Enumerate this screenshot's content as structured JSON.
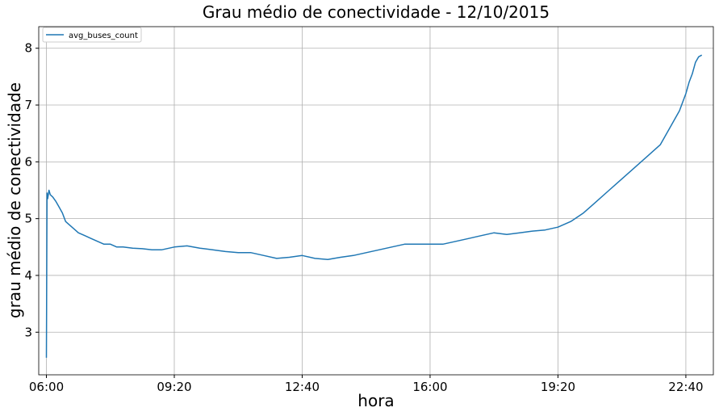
{
  "chart_data": {
    "type": "line",
    "title": "Grau médio de conectividade - 12/10/2015",
    "xlabel": "hora",
    "ylabel": "grau médio de conectividade",
    "x_unit": "time of day",
    "xlim": [
      "05:48",
      "23:23"
    ],
    "ylim": [
      2.25,
      8.38
    ],
    "x_ticks": [
      "06:00",
      "09:20",
      "12:40",
      "16:00",
      "19:20",
      "22:40"
    ],
    "y_ticks": [
      3,
      4,
      5,
      6,
      7,
      8
    ],
    "grid": true,
    "legend_position": "top-left",
    "series": [
      {
        "name": "avg_buses_count",
        "color": "#1f77b4",
        "x": [
          "06:00",
          "06:01",
          "06:02",
          "06:04",
          "06:06",
          "06:10",
          "06:15",
          "06:20",
          "06:25",
          "06:30",
          "06:35",
          "06:40",
          "06:45",
          "06:50",
          "07:00",
          "07:10",
          "07:20",
          "07:30",
          "07:40",
          "07:50",
          "08:00",
          "08:15",
          "08:30",
          "08:45",
          "09:00",
          "09:20",
          "09:40",
          "10:00",
          "10:20",
          "10:40",
          "11:00",
          "11:20",
          "11:40",
          "12:00",
          "12:20",
          "12:40",
          "13:00",
          "13:20",
          "13:40",
          "14:00",
          "14:20",
          "14:40",
          "15:00",
          "15:20",
          "15:40",
          "16:00",
          "16:20",
          "16:40",
          "17:00",
          "17:20",
          "17:40",
          "18:00",
          "18:20",
          "18:40",
          "19:00",
          "19:20",
          "19:40",
          "20:00",
          "20:20",
          "20:40",
          "21:00",
          "21:20",
          "21:40",
          "22:00",
          "22:15",
          "22:30",
          "22:40",
          "22:45",
          "22:50",
          "22:55",
          "23:00",
          "23:05"
        ],
        "values": [
          2.55,
          5.45,
          5.35,
          5.5,
          5.42,
          5.38,
          5.3,
          5.2,
          5.1,
          4.95,
          4.9,
          4.85,
          4.8,
          4.75,
          4.7,
          4.65,
          4.6,
          4.55,
          4.55,
          4.5,
          4.5,
          4.48,
          4.47,
          4.45,
          4.45,
          4.5,
          4.52,
          4.48,
          4.45,
          4.42,
          4.4,
          4.4,
          4.35,
          4.3,
          4.32,
          4.35,
          4.3,
          4.28,
          4.32,
          4.35,
          4.4,
          4.45,
          4.5,
          4.55,
          4.55,
          4.55,
          4.55,
          4.6,
          4.65,
          4.7,
          4.75,
          4.72,
          4.75,
          4.78,
          4.8,
          4.85,
          4.95,
          5.1,
          5.3,
          5.5,
          5.7,
          5.9,
          6.1,
          6.3,
          6.6,
          6.9,
          7.2,
          7.4,
          7.55,
          7.75,
          7.85,
          7.88
        ]
      }
    ]
  }
}
